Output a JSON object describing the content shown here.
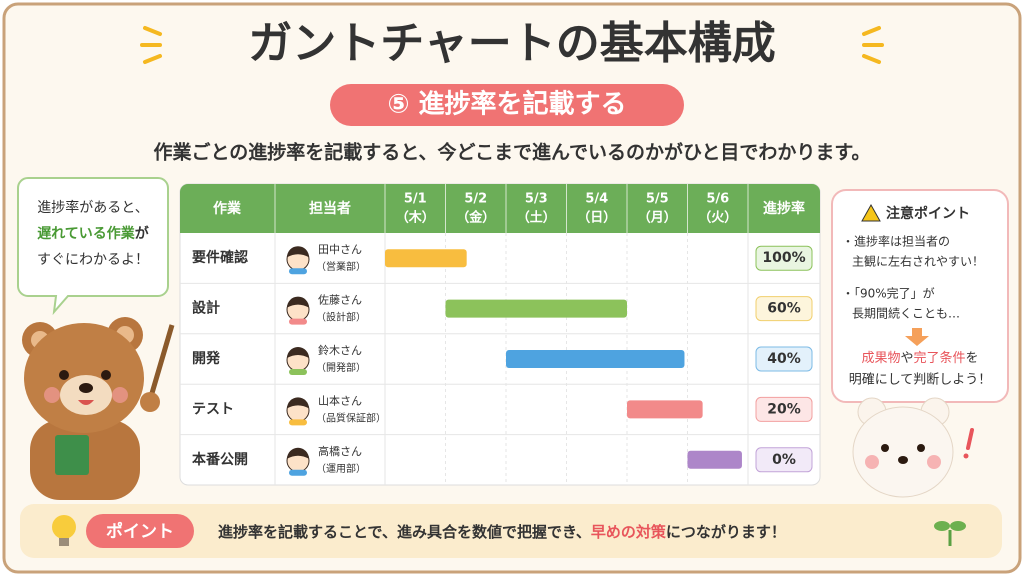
{
  "title": "ガントチャートの基本構成",
  "section": "⑤ 進捗率を記載する",
  "description": "作業ごとの進捗率を記載すると、今どこまで進んでいるのかがひと目でわかります。",
  "speech": {
    "line1": "進捗率があると、",
    "highlight": "遅れている作業",
    "line2": "が",
    "line3": "すぐにわかるよ！"
  },
  "table": {
    "task_header": "作業",
    "person_header": "担当者",
    "progress_header": "進捗率",
    "days": [
      {
        "date": "5/1",
        "weekday": "（木）"
      },
      {
        "date": "5/2",
        "weekday": "（金）"
      },
      {
        "date": "5/3",
        "weekday": "（土）"
      },
      {
        "date": "5/4",
        "weekday": "（日）"
      },
      {
        "date": "5/5",
        "weekday": "（月）"
      },
      {
        "date": "5/6",
        "weekday": "（火）"
      }
    ],
    "rows": [
      {
        "task": "要件確認",
        "person": "田中さん",
        "dept": "（営業部）",
        "progress": "100%",
        "start": 0,
        "end": 1.35,
        "color": "#f8bd3f"
      },
      {
        "task": "設計",
        "person": "佐藤さん",
        "dept": "（設計部）",
        "progress": "60%",
        "start": 1,
        "end": 4,
        "color": "#8cc25b"
      },
      {
        "task": "開発",
        "person": "鈴木さん",
        "dept": "（開発部）",
        "progress": "40%",
        "start": 2,
        "end": 4.95,
        "color": "#4ea3e0"
      },
      {
        "task": "テスト",
        "person": "山本さん",
        "dept": "（品質保証部）",
        "progress": "20%",
        "start": 4,
        "end": 5.25,
        "color": "#f28a8a"
      },
      {
        "task": "本番公開",
        "person": "高橋さん",
        "dept": "（運用部）",
        "progress": "0%",
        "start": 5,
        "end": 5.9,
        "color": "#ad86c9"
      }
    ]
  },
  "note": {
    "title": "注意ポイント",
    "item1": [
      "・進捗率は担当者の",
      "主観に左右されやすい！"
    ],
    "item2": [
      "・「90%完了」が",
      "長期間続くことも…"
    ],
    "conclusion": {
      "a": "成果物",
      "b": "や",
      "c": "完了条件",
      "d": "を",
      "line2": "明確にして判断しよう！"
    }
  },
  "point": {
    "label": "ポイント",
    "text": "進捗率を記載することで、進み具合を数値で把握でき、",
    "highlight": "早めの対策",
    "tail": "につながります！"
  }
}
